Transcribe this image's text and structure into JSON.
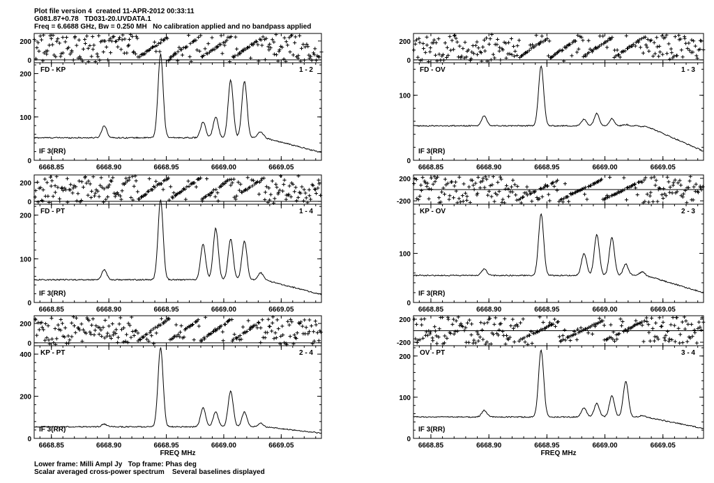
{
  "header": {
    "line1": "Plot file version 4  created 11-APR-2012 00:33:11",
    "line2": "G081.87+0.78   TD031-20.UVDATA.1",
    "line3": "Freq = 6.6688 GHz, Bw = 0.250 MH   No calibration applied and no bandpass applied"
  },
  "footer": {
    "line1": "Lower frame: Milli Ampl Jy   Top frame: Phas deg",
    "line2": "Scalar averaged cross-power spectrum    Several baselines displayed"
  },
  "colors": {
    "ink": "#000000",
    "background": "#ffffff"
  },
  "chart_data": [
    {
      "type": "line",
      "panel": "FD-KP",
      "baseline": "FD - KP",
      "baseline_number": "1 - 2",
      "if_label": "IF 3(RR)",
      "x_ticks": [
        6668.85,
        6668.9,
        6668.95,
        6669.0,
        6669.05
      ],
      "x_tick_labels": [
        "6668.85",
        "6668.90",
        "6668.95",
        "6669.00",
        "6669.05"
      ],
      "xlim": [
        6668.835,
        6669.085
      ],
      "amplitude": {
        "ylim": [
          0,
          225
        ],
        "yticks": [
          0,
          100,
          200
        ],
        "baseline_level": 52,
        "tail_level": 18,
        "peaks": [
          {
            "x": 6668.896,
            "height": 80
          },
          {
            "x": 6668.945,
            "height": 245
          },
          {
            "x": 6668.982,
            "height": 88
          },
          {
            "x": 6668.993,
            "height": 100
          },
          {
            "x": 6669.006,
            "height": 185
          },
          {
            "x": 6669.018,
            "height": 183
          },
          {
            "x": 6669.032,
            "height": 66
          }
        ]
      },
      "phase": {
        "ylim": [
          -30,
          280
        ],
        "yticks": [
          0,
          200
        ]
      }
    },
    {
      "type": "line",
      "panel": "FD-PT",
      "baseline": "FD - PT",
      "baseline_number": "1 - 4",
      "if_label": "IF 3(RR)",
      "x_ticks": [
        6668.85,
        6668.9,
        6668.95,
        6669.0,
        6669.05
      ],
      "x_tick_labels": [
        "6668.85",
        "6668.90",
        "6668.95",
        "6669.00",
        "6669.05"
      ],
      "xlim": [
        6668.835,
        6669.085
      ],
      "amplitude": {
        "ylim": [
          0,
          225
        ],
        "yticks": [
          0,
          100,
          200
        ],
        "baseline_level": 52,
        "tail_level": 18,
        "peaks": [
          {
            "x": 6668.896,
            "height": 75
          },
          {
            "x": 6668.945,
            "height": 235
          },
          {
            "x": 6668.982,
            "height": 133
          },
          {
            "x": 6668.993,
            "height": 170
          },
          {
            "x": 6669.006,
            "height": 145
          },
          {
            "x": 6669.018,
            "height": 140
          },
          {
            "x": 6669.032,
            "height": 68
          }
        ]
      },
      "phase": {
        "ylim": [
          -30,
          280
        ],
        "yticks": [
          0,
          200
        ]
      }
    },
    {
      "type": "line",
      "panel": "KP-PT",
      "baseline": "KP - PT",
      "baseline_number": "2 - 4",
      "if_label": "IF 3(RR)",
      "x_ticks": [
        6668.85,
        6668.9,
        6668.95,
        6669.0,
        6669.05
      ],
      "x_tick_labels": [
        "6668.85",
        "6668.90",
        "6668.95",
        "6669.00",
        "6669.05"
      ],
      "xlabel": "FREQ MHz",
      "xlim": [
        6668.835,
        6669.085
      ],
      "amplitude": {
        "ylim": [
          0,
          440
        ],
        "yticks": [
          0,
          200,
          400
        ],
        "baseline_level": 55,
        "tail_level": 25,
        "peaks": [
          {
            "x": 6668.896,
            "height": 68
          },
          {
            "x": 6668.945,
            "height": 430
          },
          {
            "x": 6668.982,
            "height": 145
          },
          {
            "x": 6668.993,
            "height": 125
          },
          {
            "x": 6669.006,
            "height": 225
          },
          {
            "x": 6669.018,
            "height": 125
          },
          {
            "x": 6669.032,
            "height": 72
          }
        ]
      },
      "phase": {
        "ylim": [
          -30,
          280
        ],
        "yticks": [
          0,
          200
        ]
      }
    },
    {
      "type": "line",
      "panel": "FD-OV",
      "baseline": "FD - OV",
      "baseline_number": "1 - 3",
      "if_label": "IF 3(RR)",
      "x_ticks": [
        6668.85,
        6668.9,
        6668.95,
        6669.0,
        6669.05
      ],
      "x_tick_labels": [
        "6668.85",
        "6668.90",
        "6668.95",
        "6669.00",
        "6669.05"
      ],
      "xlim": [
        6668.835,
        6669.085
      ],
      "amplitude": {
        "ylim": [
          0,
          150
        ],
        "yticks": [
          0,
          100
        ],
        "baseline_level": 53,
        "tail_level": 14,
        "peaks": [
          {
            "x": 6668.896,
            "height": 68
          },
          {
            "x": 6668.945,
            "height": 145
          },
          {
            "x": 6668.982,
            "height": 63
          },
          {
            "x": 6668.993,
            "height": 72
          },
          {
            "x": 6669.006,
            "height": 64
          },
          {
            "x": 6669.018,
            "height": 55
          },
          {
            "x": 6669.032,
            "height": 52
          }
        ]
      },
      "phase": {
        "ylim": [
          -30,
          280
        ],
        "yticks": [
          0,
          200
        ]
      }
    },
    {
      "type": "line",
      "panel": "KP-OV",
      "baseline": "KP - OV",
      "baseline_number": "2 - 3",
      "if_label": "IF 3(RR)",
      "x_ticks": [
        6668.85,
        6668.9,
        6668.95,
        6669.0,
        6669.05
      ],
      "x_tick_labels": [
        "6668.85",
        "6668.90",
        "6668.95",
        "6669.00",
        "6669.05"
      ],
      "xlim": [
        6668.835,
        6669.085
      ],
      "amplitude": {
        "ylim": [
          0,
          200
        ],
        "yticks": [
          0,
          100
        ],
        "baseline_level": 55,
        "tail_level": 20,
        "peaks": [
          {
            "x": 6668.896,
            "height": 68
          },
          {
            "x": 6668.945,
            "height": 180
          },
          {
            "x": 6668.982,
            "height": 100
          },
          {
            "x": 6668.993,
            "height": 138
          },
          {
            "x": 6669.006,
            "height": 132
          },
          {
            "x": 6669.018,
            "height": 78
          },
          {
            "x": 6669.032,
            "height": 62
          }
        ]
      },
      "phase": {
        "ylim": [
          -260,
          260
        ],
        "yticks": [
          -200,
          200
        ]
      }
    },
    {
      "type": "line",
      "panel": "OV-PT",
      "baseline": "OV - PT",
      "baseline_number": "3 - 4",
      "if_label": "IF 3(RR)",
      "x_ticks": [
        6668.85,
        6668.9,
        6668.95,
        6669.0,
        6669.05
      ],
      "x_tick_labels": [
        "6668.85",
        "6668.90",
        "6668.95",
        "6669.00",
        "6669.05"
      ],
      "xlabel": "FREQ MHz",
      "xlim": [
        6668.835,
        6669.085
      ],
      "amplitude": {
        "ylim": [
          0,
          225
        ],
        "yticks": [
          0,
          100,
          200
        ],
        "baseline_level": 52,
        "tail_level": 24,
        "peaks": [
          {
            "x": 6668.896,
            "height": 68
          },
          {
            "x": 6668.945,
            "height": 215
          },
          {
            "x": 6668.982,
            "height": 74
          },
          {
            "x": 6668.993,
            "height": 85
          },
          {
            "x": 6669.006,
            "height": 103
          },
          {
            "x": 6669.018,
            "height": 138
          },
          {
            "x": 6669.032,
            "height": 55
          }
        ]
      },
      "phase": {
        "ylim": [
          -260,
          260
        ],
        "yticks": [
          -200,
          200
        ]
      }
    }
  ]
}
